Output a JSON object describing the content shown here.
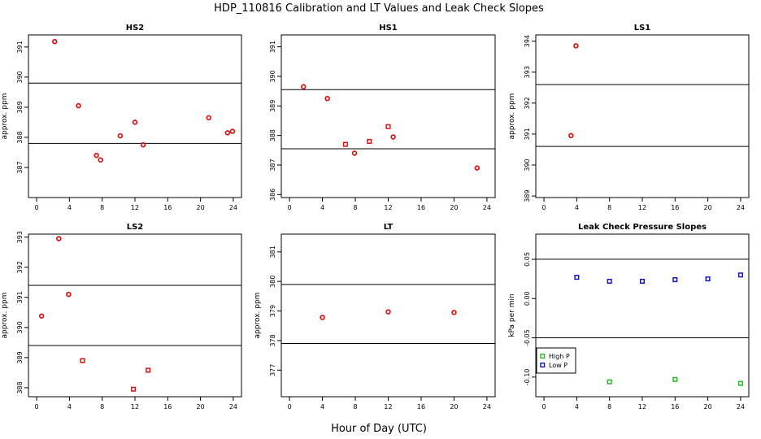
{
  "title": "HDP_110816  Calibration and LT Values and Leak Check Slopes",
  "xlabel": "Hour of Day (UTC)",
  "colors": {
    "point_red": "#e01010",
    "high_p": "#22bb22",
    "low_p": "#1515cc",
    "line": "#000000"
  },
  "chart_data": [
    {
      "type": "scatter",
      "title": "HS2",
      "ylabel": "approx. ppm",
      "xlim": [
        -1,
        25
      ],
      "ylim": [
        386.0,
        391.4
      ],
      "xticks": [
        0,
        4,
        8,
        12,
        16,
        20,
        24
      ],
      "xtick_labels": [
        "0",
        "4",
        "8",
        "12",
        "16",
        "20",
        "24"
      ],
      "yticks": [
        387,
        388,
        389,
        390,
        391
      ],
      "ytick_labels": [
        "387",
        "388",
        "389",
        "390",
        "391"
      ],
      "hlines": [
        389.8,
        387.8
      ],
      "points": [
        {
          "x": 2.2,
          "y": 391.18,
          "m": "o"
        },
        {
          "x": 5.1,
          "y": 389.05,
          "m": "o"
        },
        {
          "x": 7.3,
          "y": 387.4,
          "m": "o"
        },
        {
          "x": 7.8,
          "y": 387.25,
          "m": "o"
        },
        {
          "x": 10.2,
          "y": 388.05,
          "m": "o"
        },
        {
          "x": 12.0,
          "y": 388.5,
          "m": "o"
        },
        {
          "x": 13.0,
          "y": 387.75,
          "m": "o"
        },
        {
          "x": 21.0,
          "y": 388.65,
          "m": "o"
        },
        {
          "x": 23.3,
          "y": 388.15,
          "m": "o"
        },
        {
          "x": 23.9,
          "y": 388.2,
          "m": "o"
        }
      ]
    },
    {
      "type": "scatter",
      "title": "HS1",
      "ylabel": "",
      "xlim": [
        -1,
        25
      ],
      "ylim": [
        385.9,
        391.4
      ],
      "xticks": [
        0,
        4,
        8,
        12,
        16,
        20,
        24
      ],
      "xtick_labels": [
        "0",
        "4",
        "8",
        "12",
        "16",
        "20",
        "24"
      ],
      "yticks": [
        386,
        387,
        388,
        389,
        390,
        391
      ],
      "ytick_labels": [
        "386",
        "387",
        "388",
        "389",
        "390",
        "391"
      ],
      "hlines": [
        389.55,
        387.55
      ],
      "points": [
        {
          "x": 1.7,
          "y": 389.65,
          "m": "o"
        },
        {
          "x": 4.6,
          "y": 389.25,
          "m": "o"
        },
        {
          "x": 6.8,
          "y": 387.7,
          "m": "s"
        },
        {
          "x": 7.9,
          "y": 387.4,
          "m": "o"
        },
        {
          "x": 9.7,
          "y": 387.8,
          "m": "s"
        },
        {
          "x": 12.0,
          "y": 388.3,
          "m": "s"
        },
        {
          "x": 12.6,
          "y": 387.95,
          "m": "o"
        },
        {
          "x": 22.8,
          "y": 386.9,
          "m": "o"
        }
      ]
    },
    {
      "type": "scatter",
      "title": "LS1",
      "ylabel": "approx. ppm",
      "xlim": [
        -1,
        25
      ],
      "ylim": [
        388.95,
        394.2
      ],
      "xticks": [
        0,
        4,
        8,
        12,
        16,
        20,
        24
      ],
      "xtick_labels": [
        "0",
        "4",
        "8",
        "12",
        "16",
        "20",
        "24"
      ],
      "yticks": [
        389,
        390,
        391,
        392,
        393,
        394
      ],
      "ytick_labels": [
        "389",
        "390",
        "391",
        "392",
        "393",
        "394"
      ],
      "hlines": [
        392.6,
        390.6
      ],
      "points": [
        {
          "x": 3.3,
          "y": 390.95,
          "m": "o"
        },
        {
          "x": 3.9,
          "y": 393.85,
          "m": "o"
        }
      ]
    },
    {
      "type": "scatter",
      "title": "LS2",
      "ylabel": "approx. ppm",
      "xlim": [
        -1,
        25
      ],
      "ylim": [
        387.7,
        393.1
      ],
      "xticks": [
        0,
        4,
        8,
        12,
        16,
        20,
        24
      ],
      "xtick_labels": [
        "0",
        "4",
        "8",
        "12",
        "16",
        "20",
        "24"
      ],
      "yticks": [
        388,
        389,
        390,
        391,
        392,
        393
      ],
      "ytick_labels": [
        "388",
        "389",
        "390",
        "391",
        "392",
        "393"
      ],
      "hlines": [
        391.4,
        389.4
      ],
      "points": [
        {
          "x": 0.6,
          "y": 390.38,
          "m": "o"
        },
        {
          "x": 2.7,
          "y": 392.95,
          "m": "o"
        },
        {
          "x": 3.9,
          "y": 391.1,
          "m": "o"
        },
        {
          "x": 5.6,
          "y": 388.9,
          "m": "s"
        },
        {
          "x": 11.8,
          "y": 387.95,
          "m": "s"
        },
        {
          "x": 13.6,
          "y": 388.58,
          "m": "s"
        }
      ]
    },
    {
      "type": "scatter",
      "title": "LT",
      "ylabel": "approx. ppm",
      "xlim": [
        -1,
        25
      ],
      "ylim": [
        376.1,
        381.6
      ],
      "xticks": [
        0,
        4,
        8,
        12,
        16,
        20,
        24
      ],
      "xtick_labels": [
        "0",
        "4",
        "8",
        "12",
        "16",
        "20",
        "24"
      ],
      "yticks": [
        377,
        378,
        379,
        380,
        381
      ],
      "ytick_labels": [
        "377",
        "378",
        "379",
        "380",
        "381"
      ],
      "hlines": [
        379.9,
        377.9
      ],
      "points": [
        {
          "x": 4.0,
          "y": 378.78,
          "m": "o"
        },
        {
          "x": 12.0,
          "y": 378.97,
          "m": "o"
        },
        {
          "x": 20.0,
          "y": 378.95,
          "m": "o"
        }
      ]
    },
    {
      "type": "scatter",
      "title": "Leak Check Pressure Slopes",
      "ylabel": "kPa per min",
      "xlim": [
        -1,
        25
      ],
      "ylim": [
        -0.125,
        0.082
      ],
      "xticks": [
        0,
        4,
        8,
        12,
        16,
        20,
        24
      ],
      "xtick_labels": [
        "0",
        "4",
        "8",
        "12",
        "16",
        "20",
        "24"
      ],
      "yticks": [
        -0.1,
        -0.05,
        0.0,
        0.05
      ],
      "ytick_labels": [
        "-0.10",
        "-0.05",
        "0.00",
        "0.05"
      ],
      "hlines": [
        0.05,
        -0.05
      ],
      "legend": {
        "position": "bottom-left",
        "entries": [
          "High P",
          "Low P"
        ]
      },
      "series": [
        {
          "name": "High P",
          "color": "#22bb22",
          "points": [
            {
              "x": 8,
              "y": -0.106
            },
            {
              "x": 16,
              "y": -0.103
            },
            {
              "x": 24,
              "y": -0.108
            }
          ]
        },
        {
          "name": "Low P",
          "color": "#1515cc",
          "points": [
            {
              "x": 4,
              "y": 0.027
            },
            {
              "x": 8,
              "y": 0.022
            },
            {
              "x": 12,
              "y": 0.022
            },
            {
              "x": 16,
              "y": 0.024
            },
            {
              "x": 20,
              "y": 0.025
            },
            {
              "x": 24,
              "y": 0.03
            }
          ]
        }
      ]
    }
  ]
}
